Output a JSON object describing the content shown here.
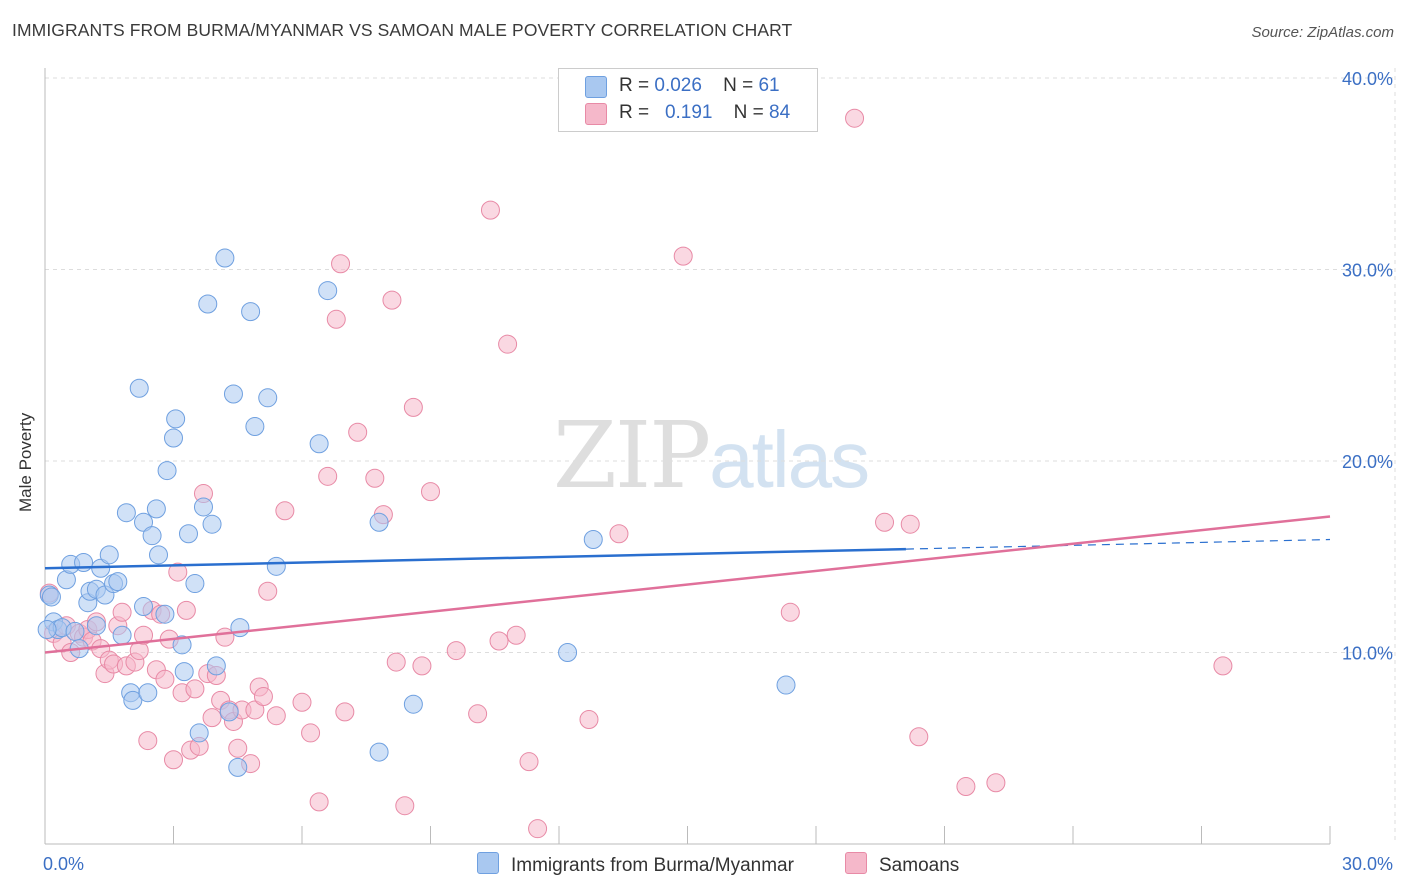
{
  "header": {
    "title": "IMMIGRANTS FROM BURMA/MYANMAR VS SAMOAN MALE POVERTY CORRELATION CHART",
    "source": "Source: ZipAtlas.com"
  },
  "watermark": {
    "zip": "ZIP",
    "atlas": "atlas"
  },
  "colors": {
    "blue_fill": "#a9c8f0",
    "blue_stroke": "#6fa0e0",
    "blue_line": "#2a6fcf",
    "pink_fill": "#f5b8ca",
    "pink_stroke": "#e88aa6",
    "pink_line": "#e0709a",
    "axis_text": "#3b6fc4",
    "grid": "#dddddd"
  },
  "legend_top": {
    "rows": [
      {
        "r_label": "R =",
        "r_value": "0.026",
        "n_label": "N =",
        "n_value": "61",
        "color": "#a9c8f0"
      },
      {
        "r_label": "R =",
        "r_value": "0.191",
        "n_label": "N =",
        "n_value": "84",
        "color": "#f5b8ca"
      }
    ]
  },
  "legend_bottom": [
    {
      "label": "Immigrants from Burma/Myanmar",
      "color": "#a9c8f0"
    },
    {
      "label": "Samoans",
      "color": "#f5b8ca"
    }
  ],
  "chart_data": {
    "type": "scatter",
    "title": "IMMIGRANTS FROM BURMA/MYANMAR VS SAMOAN MALE POVERTY CORRELATION CHART",
    "xlabel": "",
    "ylabel": "Male Poverty",
    "xlim": [
      0,
      30
    ],
    "ylim": [
      0,
      40
    ],
    "x_tick_labels": [
      "0.0%",
      "30.0%"
    ],
    "y_tick_labels": [
      "10.0%",
      "20.0%",
      "30.0%",
      "40.0%"
    ],
    "y_ticks": [
      10,
      20,
      30,
      40
    ],
    "grid": true,
    "legend_position": "top-center",
    "series": [
      {
        "name": "Immigrants from Burma/Myanmar",
        "color": "#a9c8f0",
        "r": 0.026,
        "n": 61,
        "trend": {
          "x": [
            0,
            20.1
          ],
          "y": [
            14.4,
            15.4
          ],
          "dashed_to": {
            "x": 30,
            "y": 15.9
          }
        },
        "points": [
          [
            0.1,
            13.0
          ],
          [
            0.2,
            11.6
          ],
          [
            0.3,
            11.2
          ],
          [
            0.4,
            11.3
          ],
          [
            0.5,
            13.8
          ],
          [
            0.6,
            14.6
          ],
          [
            0.7,
            11.1
          ],
          [
            0.8,
            10.2
          ],
          [
            0.9,
            14.7
          ],
          [
            1.0,
            12.6
          ],
          [
            1.05,
            13.2
          ],
          [
            1.2,
            13.3
          ],
          [
            1.2,
            11.4
          ],
          [
            1.3,
            14.4
          ],
          [
            1.4,
            13.0
          ],
          [
            1.5,
            15.1
          ],
          [
            1.6,
            13.6
          ],
          [
            1.7,
            13.7
          ],
          [
            1.8,
            10.9
          ],
          [
            1.9,
            17.3
          ],
          [
            2.0,
            7.9
          ],
          [
            2.05,
            7.5
          ],
          [
            2.2,
            23.8
          ],
          [
            2.3,
            12.4
          ],
          [
            2.3,
            16.8
          ],
          [
            2.4,
            7.9
          ],
          [
            2.5,
            16.1
          ],
          [
            2.6,
            17.5
          ],
          [
            2.65,
            15.1
          ],
          [
            2.8,
            12.0
          ],
          [
            2.85,
            19.5
          ],
          [
            3.0,
            21.2
          ],
          [
            3.05,
            22.2
          ],
          [
            3.2,
            10.4
          ],
          [
            3.25,
            9.0
          ],
          [
            3.35,
            16.2
          ],
          [
            3.5,
            13.6
          ],
          [
            3.6,
            5.8
          ],
          [
            3.7,
            17.6
          ],
          [
            3.8,
            28.2
          ],
          [
            3.9,
            16.7
          ],
          [
            4.0,
            9.3
          ],
          [
            4.2,
            30.6
          ],
          [
            4.3,
            6.9
          ],
          [
            4.4,
            23.5
          ],
          [
            4.5,
            4.0
          ],
          [
            4.55,
            11.3
          ],
          [
            4.8,
            27.8
          ],
          [
            4.9,
            21.8
          ],
          [
            5.2,
            23.3
          ],
          [
            5.4,
            14.5
          ],
          [
            6.6,
            28.9
          ],
          [
            6.4,
            20.9
          ],
          [
            7.8,
            16.8
          ],
          [
            7.8,
            4.8
          ],
          [
            8.6,
            7.3
          ],
          [
            12.2,
            10.0
          ],
          [
            12.8,
            15.9
          ],
          [
            17.3,
            8.3
          ],
          [
            0.05,
            11.2
          ],
          [
            0.15,
            12.9
          ]
        ]
      },
      {
        "name": "Samoans",
        "color": "#f5b8ca",
        "r": 0.191,
        "n": 84,
        "trend": {
          "x": [
            0,
            30
          ],
          "y": [
            10.0,
            17.1
          ]
        },
        "points": [
          [
            0.1,
            13.1
          ],
          [
            0.2,
            11.0
          ],
          [
            0.4,
            10.5
          ],
          [
            0.5,
            11.4
          ],
          [
            0.6,
            10.0
          ],
          [
            0.8,
            11.0
          ],
          [
            0.9,
            10.8
          ],
          [
            1.0,
            11.2
          ],
          [
            1.1,
            10.6
          ],
          [
            1.2,
            11.6
          ],
          [
            1.3,
            10.2
          ],
          [
            1.4,
            8.9
          ],
          [
            1.5,
            9.6
          ],
          [
            1.6,
            9.4
          ],
          [
            1.7,
            11.4
          ],
          [
            1.8,
            12.1
          ],
          [
            1.9,
            9.3
          ],
          [
            2.1,
            9.5
          ],
          [
            2.2,
            10.1
          ],
          [
            2.3,
            10.9
          ],
          [
            2.4,
            5.4
          ],
          [
            2.5,
            12.2
          ],
          [
            2.6,
            9.1
          ],
          [
            2.7,
            12.0
          ],
          [
            2.8,
            8.6
          ],
          [
            2.9,
            10.7
          ],
          [
            3.0,
            4.4
          ],
          [
            3.1,
            14.2
          ],
          [
            3.2,
            7.9
          ],
          [
            3.3,
            12.2
          ],
          [
            3.4,
            4.9
          ],
          [
            3.5,
            8.1
          ],
          [
            3.6,
            5.1
          ],
          [
            3.7,
            18.3
          ],
          [
            3.8,
            8.9
          ],
          [
            3.9,
            6.6
          ],
          [
            4.0,
            8.8
          ],
          [
            4.1,
            7.5
          ],
          [
            4.2,
            10.8
          ],
          [
            4.3,
            7.0
          ],
          [
            4.4,
            6.4
          ],
          [
            4.5,
            5.0
          ],
          [
            4.6,
            7.0
          ],
          [
            4.8,
            4.2
          ],
          [
            4.9,
            7.0
          ],
          [
            5.0,
            8.2
          ],
          [
            5.1,
            7.7
          ],
          [
            5.2,
            13.2
          ],
          [
            5.4,
            6.7
          ],
          [
            5.6,
            17.4
          ],
          [
            6.0,
            7.4
          ],
          [
            6.2,
            5.8
          ],
          [
            6.4,
            2.2
          ],
          [
            6.6,
            19.2
          ],
          [
            6.8,
            27.4
          ],
          [
            6.9,
            30.3
          ],
          [
            7.0,
            6.9
          ],
          [
            7.3,
            21.5
          ],
          [
            7.7,
            19.1
          ],
          [
            7.9,
            17.2
          ],
          [
            8.1,
            28.4
          ],
          [
            8.2,
            9.5
          ],
          [
            8.4,
            2.0
          ],
          [
            8.6,
            22.8
          ],
          [
            8.8,
            9.3
          ],
          [
            9.0,
            18.4
          ],
          [
            9.6,
            10.1
          ],
          [
            10.1,
            6.8
          ],
          [
            10.4,
            33.1
          ],
          [
            10.6,
            10.6
          ],
          [
            10.8,
            26.1
          ],
          [
            11.0,
            10.9
          ],
          [
            11.3,
            4.3
          ],
          [
            11.5,
            0.8
          ],
          [
            12.7,
            6.5
          ],
          [
            13.4,
            16.2
          ],
          [
            14.9,
            30.7
          ],
          [
            17.4,
            12.1
          ],
          [
            18.9,
            37.9
          ],
          [
            19.6,
            16.8
          ],
          [
            20.2,
            16.7
          ],
          [
            20.4,
            5.6
          ],
          [
            21.5,
            3.0
          ],
          [
            22.2,
            3.2
          ],
          [
            27.5,
            9.3
          ]
        ]
      }
    ]
  }
}
